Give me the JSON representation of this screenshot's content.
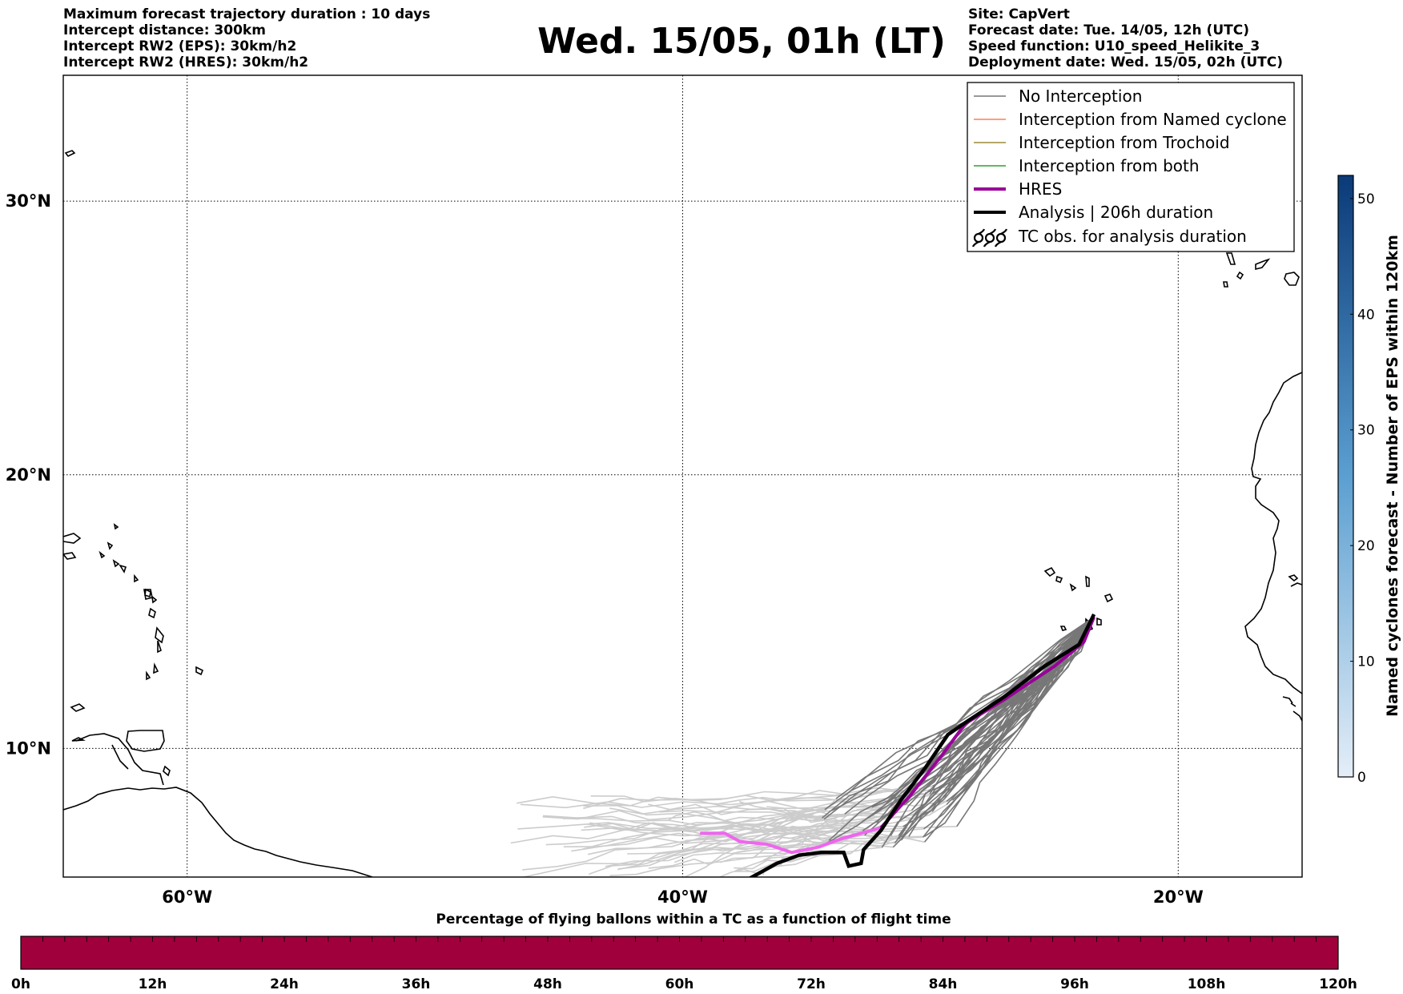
{
  "header": {
    "left_info": [
      "Maximum forecast trajectory duration : 10 days",
      "Intercept distance: 300km",
      "Intercept RW2 (EPS):  30km/h2",
      "Intercept RW2 (HRES): 30km/h2"
    ],
    "right_info": [
      "Site: CapVert",
      "Forecast date: Tue. 14/05, 12h (UTC)",
      "Speed function: U10_speed_Helikite_3",
      "Deployment date: Wed. 15/05, 02h (UTC)"
    ],
    "title": "Wed. 15/05, 01h (LT)"
  },
  "map": {
    "lon_range": [
      -65,
      -15
    ],
    "lat_range": [
      5.3,
      34.6
    ],
    "lon_ticks": [
      {
        "value": -60,
        "label": "60°W"
      },
      {
        "value": -40,
        "label": "40°W"
      },
      {
        "value": -20,
        "label": "20°W"
      }
    ],
    "lat_ticks": [
      {
        "value": 30,
        "label": "30°N"
      },
      {
        "value": 20,
        "label": "20°N"
      },
      {
        "value": 10,
        "label": "10°N"
      }
    ],
    "grid": true,
    "colors": {
      "no_interception": "#777777",
      "no_interception_late": "#cccccc",
      "named_cyclone": "#ff7f50",
      "trochoid": "#9a8c3a",
      "both": "#2ca02c",
      "hres": "#990099",
      "hres_late": "#ee66ee",
      "analysis": "#000000"
    },
    "legend": {
      "position": "top-right",
      "items": [
        {
          "label": "No Interception",
          "style": "thin",
          "color": "#777777"
        },
        {
          "label": "Interception from Named cyclone",
          "style": "thin",
          "color": "#ff7f50"
        },
        {
          "label": "Interception from Trochoid",
          "style": "thin",
          "color": "#9a8c3a"
        },
        {
          "label": "Interception from both",
          "style": "thin",
          "color": "#2ca02c"
        },
        {
          "label": "HRES",
          "style": "thick",
          "color": "#990099"
        },
        {
          "label": "Analysis | 206h duration",
          "style": "thick",
          "color": "#000000"
        },
        {
          "label": "TC obs. for analysis duration",
          "style": "symbol",
          "color": "#000000"
        }
      ]
    },
    "hres_track": [
      [
        -23.4,
        14.8
      ],
      [
        -23.8,
        13.9
      ],
      [
        -25.0,
        13.0
      ],
      [
        -27.0,
        11.8
      ],
      [
        -28.6,
        10.9
      ],
      [
        -29.5,
        9.8
      ],
      [
        -30.8,
        8.3
      ],
      [
        -32.0,
        7.1
      ],
      [
        -33.6,
        6.7
      ],
      [
        -34.5,
        6.4
      ],
      [
        -35.6,
        6.2
      ],
      [
        -36.6,
        6.5
      ],
      [
        -37.7,
        6.6
      ],
      [
        -38.3,
        6.9
      ],
      [
        -39.3,
        6.9
      ]
    ],
    "analysis_track": [
      [
        -23.4,
        14.9
      ],
      [
        -24.0,
        13.8
      ],
      [
        -25.4,
        13.0
      ],
      [
        -27.0,
        11.9
      ],
      [
        -28.5,
        11.0
      ],
      [
        -29.3,
        10.5
      ],
      [
        -30.2,
        9.3
      ],
      [
        -31.2,
        8.1
      ],
      [
        -32.0,
        7.0
      ],
      [
        -32.7,
        6.3
      ],
      [
        -32.8,
        5.8
      ],
      [
        -33.3,
        5.7
      ],
      [
        -33.5,
        6.2
      ],
      [
        -34.4,
        6.2
      ],
      [
        -35.3,
        6.1
      ],
      [
        -36.2,
        5.8
      ],
      [
        -37.0,
        5.4
      ],
      [
        -37.6,
        5.1
      ]
    ]
  },
  "colorbar_right": {
    "label": "Named cyclones forecast - Number of EPS within 120km",
    "min": 0,
    "max": 52,
    "ticks": [
      0,
      10,
      20,
      30,
      40,
      50
    ],
    "color_low": "#e4eef8",
    "color_high": "#0a3a78"
  },
  "colorbar_bottom": {
    "label": "Percentage of flying ballons within a TC as a function of flight time",
    "ticks": [
      "0h",
      "12h",
      "24h",
      "36h",
      "48h",
      "60h",
      "72h",
      "84h",
      "96h",
      "108h",
      "120h"
    ],
    "color": "#a0003c"
  }
}
